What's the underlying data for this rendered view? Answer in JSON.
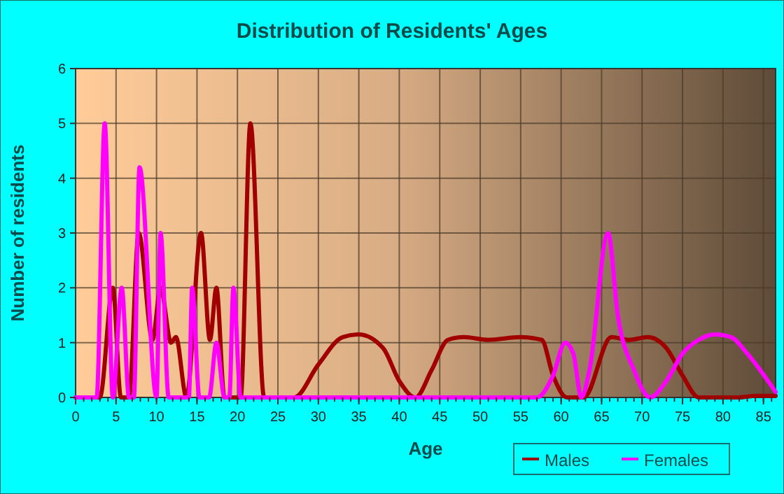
{
  "chart_data": {
    "type": "line",
    "title": "Distribution of Residents' Ages",
    "xlabel": "Age",
    "ylabel": "Number of residents",
    "xlim": [
      0,
      86.5
    ],
    "xticks": [
      0,
      5,
      10,
      15,
      20,
      25,
      30,
      35,
      40,
      45,
      50,
      55,
      60,
      65,
      70,
      75,
      80,
      85
    ],
    "ylim": [
      0,
      6
    ],
    "yticks": [
      0,
      1,
      2,
      3,
      4,
      5,
      6
    ],
    "grid": true,
    "legend": "bottom",
    "line_style": "solid",
    "marker": "none",
    "series": [
      {
        "name": "Males",
        "color": "#a00000",
        "x": [
          0,
          3,
          4.6,
          5.6,
          6.6,
          7.8,
          9.5,
          10.5,
          11.8,
          12.4,
          13.7,
          15.5,
          16.6,
          17.4,
          18.4,
          20.4,
          21.6,
          23.3,
          27,
          30,
          33,
          35,
          38,
          40,
          42,
          44,
          46,
          48,
          51,
          55,
          57.6,
          59,
          60.7,
          62.8,
          66.2,
          68.4,
          70.7,
          73,
          75,
          77,
          82,
          84,
          86.5
        ],
        "values": [
          0,
          0,
          2,
          0,
          0,
          3,
          1.05,
          2,
          1,
          1.1,
          0,
          3,
          1.05,
          2,
          0,
          0,
          5,
          0,
          0,
          0.6,
          1.1,
          1.15,
          0.9,
          0.3,
          0,
          0.5,
          1.05,
          1.1,
          1.05,
          1.1,
          1.05,
          0.4,
          0,
          0,
          1.1,
          1.05,
          1.1,
          0.9,
          0.4,
          0,
          0,
          0.03,
          0.03
        ]
      },
      {
        "name": "Females",
        "color": "#ff00ff",
        "x": [
          0,
          2.6,
          3.6,
          4.6,
          5.7,
          6.6,
          7.2,
          7.9,
          10,
          10.5,
          11.5,
          14,
          14.4,
          15.3,
          16.5,
          17.4,
          18.4,
          19,
          19.5,
          20.4,
          57,
          59,
          60.5,
          61.5,
          62.5,
          63.5,
          65.8,
          67,
          69,
          71,
          73,
          75,
          77,
          79,
          81,
          83,
          86.5
        ],
        "values": [
          0,
          0,
          5,
          0,
          2,
          0,
          0,
          4.2,
          0,
          3,
          0,
          0,
          2,
          0,
          0,
          1,
          0,
          0,
          2,
          0,
          0,
          0.4,
          1,
          0.8,
          0,
          0.5,
          3,
          1.5,
          0.5,
          0,
          0.3,
          0.8,
          1.05,
          1.15,
          1.1,
          0.8,
          0.1
        ]
      }
    ]
  }
}
